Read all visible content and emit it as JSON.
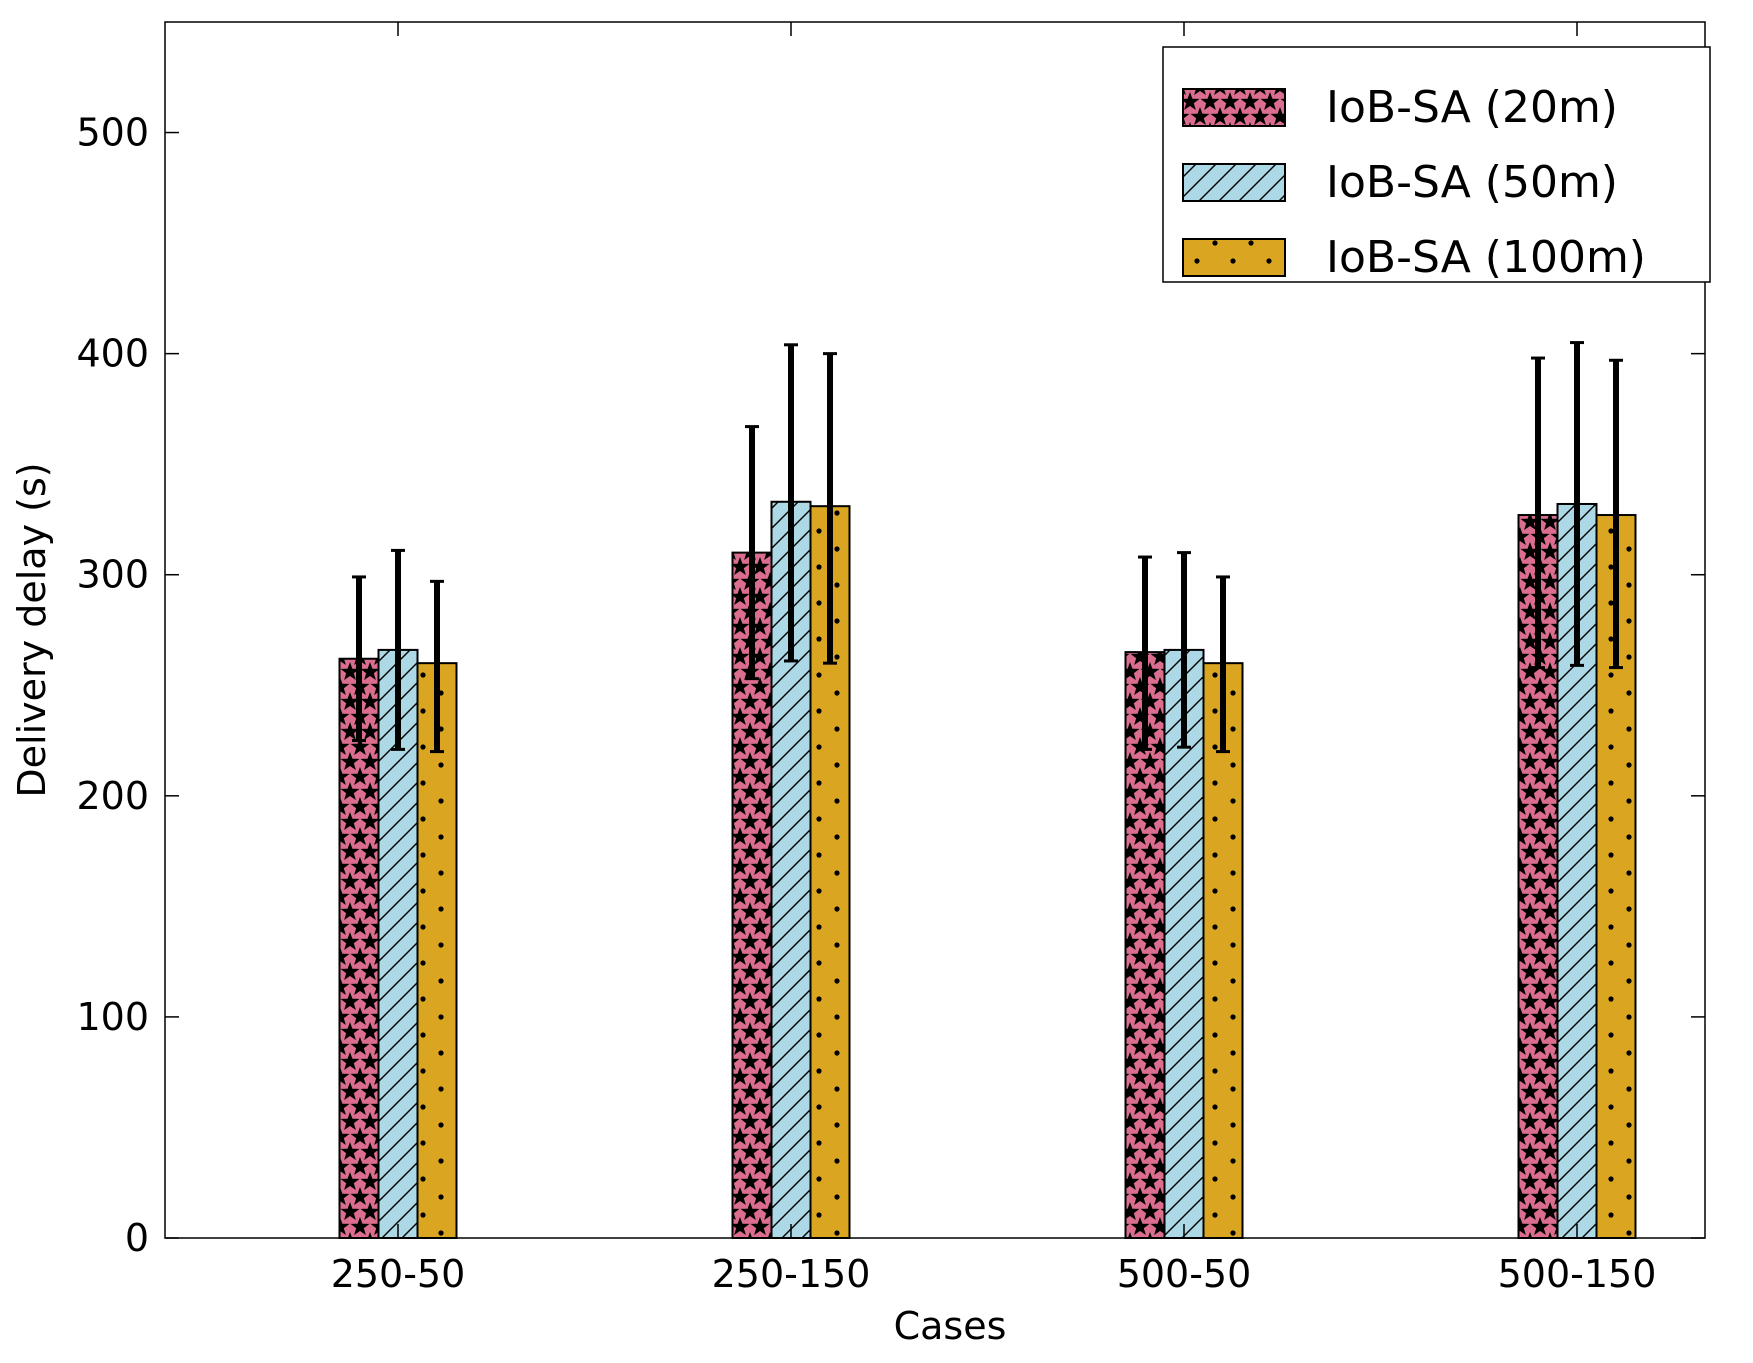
{
  "chart_data": {
    "type": "bar",
    "title": "",
    "xlabel": "Cases",
    "ylabel": "Delivery delay (s)",
    "categories": [
      "250-50",
      "250-150",
      "500-50",
      "500-150"
    ],
    "ylim": [
      0,
      550
    ],
    "yticks": [
      0,
      100,
      200,
      300,
      400,
      500
    ],
    "grid": false,
    "legend_position": "top-right",
    "error_bars": true,
    "series": [
      {
        "name": "IoB-SA (20m)",
        "color": "#db6e8f",
        "pattern": "stars",
        "values": [
          262,
          310,
          265,
          327
        ],
        "error_low": [
          225,
          253,
          221,
          258
        ],
        "error_high": [
          299,
          367,
          308,
          398
        ]
      },
      {
        "name": "IoB-SA (50m)",
        "color": "#add8e6",
        "pattern": "diagonal-hatch",
        "values": [
          266,
          333,
          266,
          332
        ],
        "error_low": [
          221,
          261,
          222,
          259
        ],
        "error_high": [
          311,
          404,
          310,
          405
        ]
      },
      {
        "name": "IoB-SA (100m)",
        "color": "#daa520",
        "pattern": "dots",
        "values": [
          260,
          331,
          260,
          327
        ],
        "error_low": [
          220,
          260,
          220,
          258
        ],
        "error_high": [
          297,
          400,
          299,
          397
        ]
      }
    ]
  }
}
